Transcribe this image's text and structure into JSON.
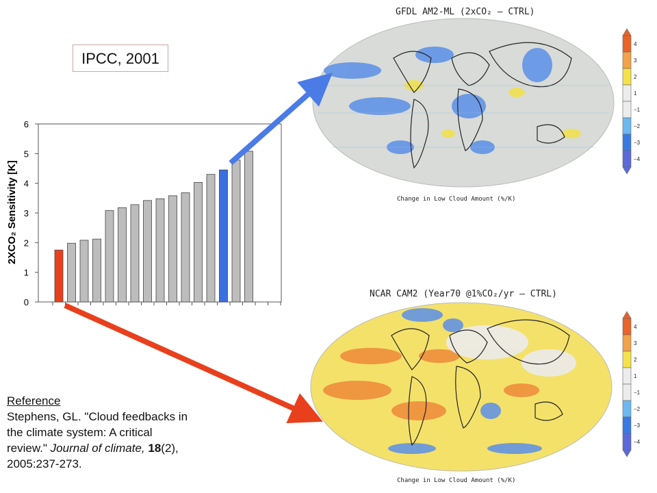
{
  "label_box": "IPCC, 2001",
  "reference": {
    "heading": "Reference",
    "line1": "Stephens, GL. \"Cloud feedbacks in",
    "line2": "the climate system: A critical",
    "line3_pre": "review.\" ",
    "journal": "Journal of climate,",
    "volume": "18",
    "issue": "(2),",
    "pages": "2005:237-273."
  },
  "maps": [
    {
      "title": "GFDL AM2-ML (2xCO₂ – CTRL)",
      "subtitle": "Change in Low Cloud Amount (%/K)",
      "colorbar_labels": [
        "4",
        "3",
        "2",
        "1",
        "−1",
        "−2",
        "−3",
        "−4"
      ]
    },
    {
      "title": "NCAR CAM2 (Year70 @1%CO₂/yr – CTRL)",
      "subtitle": "Change in Low Cloud Amount (%/K)",
      "colorbar_labels": [
        "4",
        "3",
        "2",
        "1",
        "−1",
        "−2",
        "−3",
        "−4"
      ]
    }
  ],
  "colors": {
    "bar_default": "#bdbdbd",
    "bar_low": "#e8401c",
    "bar_high": "#3a6fe0",
    "arrow_blue": "#4a7be6",
    "arrow_red": "#e8401c",
    "colorbar": [
      "#e8642a",
      "#f2a24a",
      "#f4e24a",
      "#ececec",
      "#ececec",
      "#6db8f0",
      "#3a7ae0",
      "#5b6ad8"
    ]
  },
  "chart_data": {
    "type": "bar",
    "title": "",
    "xlabel": "",
    "ylabel": "2XCO₂ Sensitivity [K]",
    "ylim": [
      0,
      6
    ],
    "yticks": [
      "0",
      "1",
      "2",
      "3",
      "4",
      "5",
      "6"
    ],
    "grid": false,
    "values": [
      1.75,
      1.98,
      2.08,
      2.12,
      3.08,
      3.18,
      3.28,
      3.42,
      3.48,
      3.58,
      3.68,
      4.03,
      4.3,
      4.45,
      4.78,
      5.08
    ],
    "highlight": {
      "0": "low",
      "13": "high"
    }
  }
}
